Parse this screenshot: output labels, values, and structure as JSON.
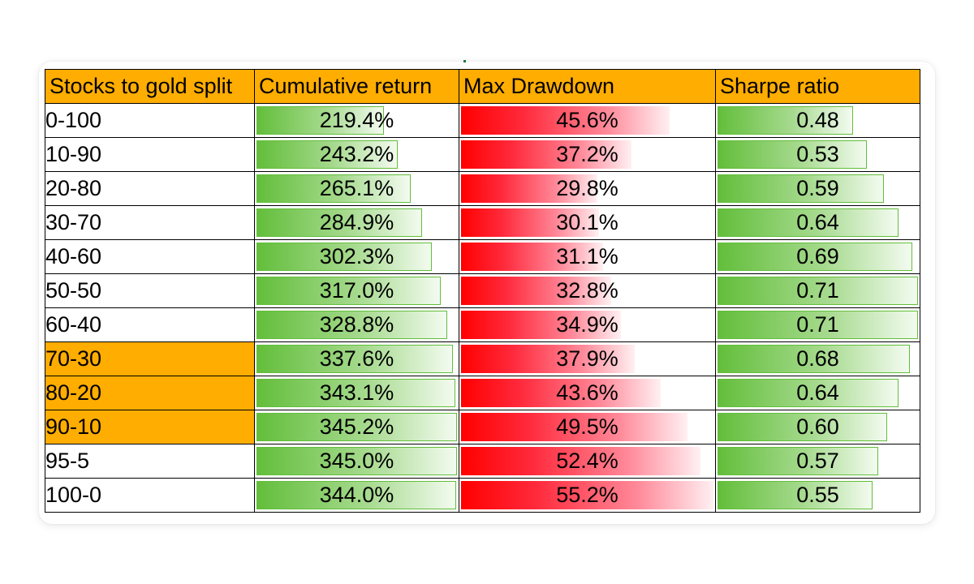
{
  "table": {
    "headers": {
      "split": "Stocks to gold split",
      "cumulative_return": "Cumulative return",
      "max_drawdown": "Max Drawdown",
      "sharpe_ratio": "Sharpe ratio"
    },
    "rows": [
      {
        "split": "0-100",
        "ret": "219.4%",
        "ret_v": 219.4,
        "dd": "45.6%",
        "dd_v": 45.6,
        "sh": "0.48",
        "sh_v": 0.48,
        "highlight": false
      },
      {
        "split": "10-90",
        "ret": "243.2%",
        "ret_v": 243.2,
        "dd": "37.2%",
        "dd_v": 37.2,
        "sh": "0.53",
        "sh_v": 0.53,
        "highlight": false
      },
      {
        "split": "20-80",
        "ret": "265.1%",
        "ret_v": 265.1,
        "dd": "29.8%",
        "dd_v": 29.8,
        "sh": "0.59",
        "sh_v": 0.59,
        "highlight": false
      },
      {
        "split": "30-70",
        "ret": "284.9%",
        "ret_v": 284.9,
        "dd": "30.1%",
        "dd_v": 30.1,
        "sh": "0.64",
        "sh_v": 0.64,
        "highlight": false
      },
      {
        "split": "40-60",
        "ret": "302.3%",
        "ret_v": 302.3,
        "dd": "31.1%",
        "dd_v": 31.1,
        "sh": "0.69",
        "sh_v": 0.69,
        "highlight": false
      },
      {
        "split": "50-50",
        "ret": "317.0%",
        "ret_v": 317.0,
        "dd": "32.8%",
        "dd_v": 32.8,
        "sh": "0.71",
        "sh_v": 0.71,
        "highlight": false
      },
      {
        "split": "60-40",
        "ret": "328.8%",
        "ret_v": 328.8,
        "dd": "34.9%",
        "dd_v": 34.9,
        "sh": "0.71",
        "sh_v": 0.71,
        "highlight": false
      },
      {
        "split": "70-30",
        "ret": "337.6%",
        "ret_v": 337.6,
        "dd": "37.9%",
        "dd_v": 37.9,
        "sh": "0.68",
        "sh_v": 0.68,
        "highlight": true
      },
      {
        "split": "80-20",
        "ret": "343.1%",
        "ret_v": 343.1,
        "dd": "43.6%",
        "dd_v": 43.6,
        "sh": "0.64",
        "sh_v": 0.64,
        "highlight": true
      },
      {
        "split": "90-10",
        "ret": "345.2%",
        "ret_v": 345.2,
        "dd": "49.5%",
        "dd_v": 49.5,
        "sh": "0.60",
        "sh_v": 0.6,
        "highlight": true
      },
      {
        "split": "95-5",
        "ret": "345.0%",
        "ret_v": 345.0,
        "dd": "52.4%",
        "dd_v": 52.4,
        "sh": "0.57",
        "sh_v": 0.57,
        "highlight": false
      },
      {
        "split": "100-0",
        "ret": "344.0%",
        "ret_v": 344.0,
        "dd": "55.2%",
        "dd_v": 55.2,
        "sh": "0.55",
        "sh_v": 0.55,
        "highlight": false
      }
    ]
  },
  "colors": {
    "header_bg": "#ffad00",
    "highlight_bg": "#ffad00",
    "bar_green": "#63be3b",
    "bar_red": "#ff0000",
    "border": "#000000"
  }
}
